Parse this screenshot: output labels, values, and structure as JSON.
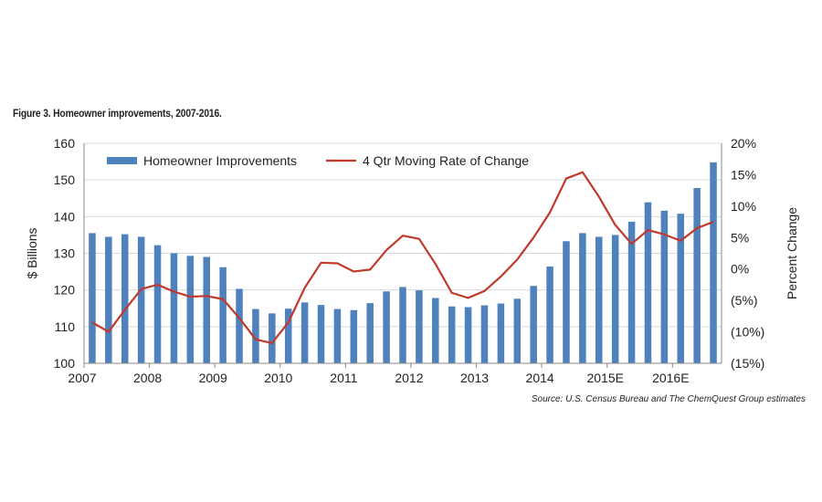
{
  "figure_title": "Figure 3. Homeowner improvements, 2007-2016.",
  "source_note": "Source: U.S. Census Bureau and The ChemQuest Group estimates",
  "colors": {
    "bars": "#4f81bd",
    "line": "#c0392b",
    "grid": "#d9d9d9",
    "axis": "#888888"
  },
  "chart_data": {
    "type": "bar",
    "xlabel": "",
    "ylabel": "$ Billions",
    "y2label": "Percent Change",
    "ylim": [
      100,
      160
    ],
    "y2lim": [
      -15,
      20
    ],
    "yticks": [
      "100",
      "110",
      "120",
      "130",
      "140",
      "150",
      "160"
    ],
    "y2ticks": [
      "(15%)",
      "(10%)",
      "(5%)",
      "0%",
      "5%",
      "10%",
      "15%",
      "20%"
    ],
    "x_tick_labels": [
      "2007",
      "2008",
      "2009",
      "2010",
      "2011",
      "2012",
      "2013",
      "2014",
      "2015E",
      "2016E"
    ],
    "grid": true,
    "legend": "top-left",
    "series": [
      {
        "name": "Homeowner Improvements",
        "type": "bar",
        "axis": "left",
        "values": [
          135.5,
          134.5,
          135.2,
          134.5,
          132.2,
          130.0,
          129.3,
          129.0,
          126.2,
          120.3,
          114.8,
          113.6,
          114.9,
          116.6,
          115.9,
          114.8,
          114.5,
          116.4,
          119.6,
          120.8,
          119.9,
          117.8,
          115.5,
          115.3,
          115.8,
          116.3,
          117.6,
          121.1,
          126.4,
          133.3,
          135.5,
          134.5,
          135.0,
          138.6,
          143.9,
          141.6,
          140.8,
          147.8,
          154.8
        ]
      },
      {
        "name": "4 Qtr Moving Rate of Change",
        "type": "line",
        "axis": "right",
        "values": [
          -8.5,
          -10.0,
          -6.5,
          -3.2,
          -2.5,
          -3.6,
          -4.4,
          -4.3,
          -4.8,
          -7.8,
          -11.2,
          -11.8,
          -8.5,
          -3.0,
          1.0,
          0.9,
          -0.4,
          -0.1,
          3.0,
          5.3,
          4.8,
          0.8,
          -3.8,
          -4.6,
          -3.5,
          -1.2,
          1.5,
          5.0,
          9.0,
          14.4,
          15.4,
          11.5,
          7.0,
          4.0,
          6.2,
          5.5,
          4.5,
          6.5,
          7.5
        ]
      }
    ]
  }
}
